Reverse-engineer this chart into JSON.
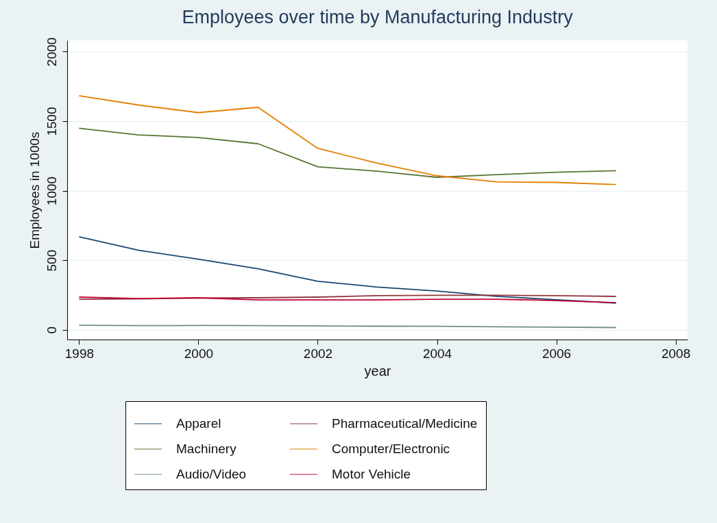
{
  "chart_data": {
    "type": "line",
    "title": "Employees over time by Manufacturing Industry",
    "xlabel": "year",
    "ylabel": "Employees in 1000s",
    "x": [
      1998,
      1999,
      2000,
      2001,
      2002,
      2003,
      2004,
      2005,
      2006,
      2007
    ],
    "series": [
      {
        "name": "Apparel",
        "color": "#1a476f",
        "values": [
          669,
          571,
          508,
          439,
          349,
          307,
          279,
          241,
          216,
          192
        ]
      },
      {
        "name": "Pharmaceutical/Medicine",
        "color": "#90353b",
        "values": [
          220,
          222,
          228,
          230,
          235,
          245,
          248,
          248,
          245,
          240
        ]
      },
      {
        "name": "Machinery",
        "color": "#55752f",
        "values": [
          1448,
          1400,
          1382,
          1337,
          1172,
          1140,
          1096,
          1115,
          1132,
          1143
        ]
      },
      {
        "name": "Computer/Electronic",
        "color": "#e37e00",
        "values": [
          1682,
          1615,
          1561,
          1599,
          1304,
          1197,
          1107,
          1063,
          1059,
          1044
        ]
      },
      {
        "name": "Audio/Video",
        "color": "#6e8e84",
        "values": [
          33,
          30,
          31,
          30,
          28,
          26,
          25,
          22,
          19,
          16
        ]
      },
      {
        "name": "Motor Vehicle",
        "color": "#c10534",
        "values": [
          235,
          225,
          230,
          215,
          215,
          215,
          220,
          220,
          210,
          195
        ]
      }
    ],
    "xlim": [
      1997.8,
      2008.2
    ],
    "xticks": [
      1998,
      2000,
      2002,
      2004,
      2006,
      2008
    ],
    "ylim": [
      -70,
      2080
    ],
    "yticks": [
      0,
      500,
      1000,
      1500,
      2000
    ],
    "grid": "y",
    "legend": "bottom",
    "marker": "none",
    "line_style": "solid"
  }
}
